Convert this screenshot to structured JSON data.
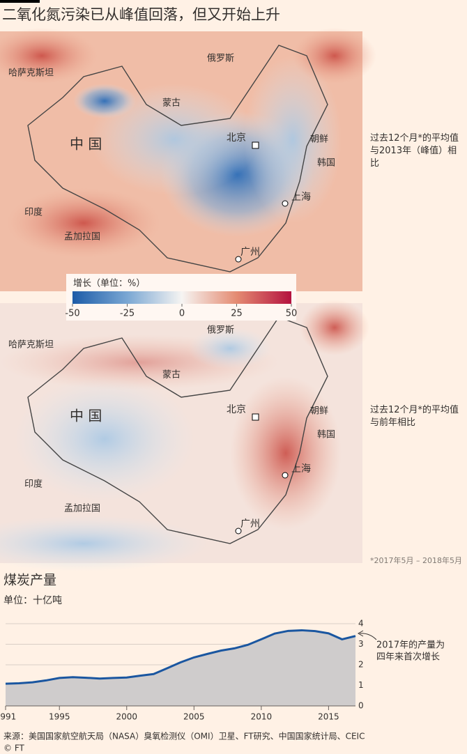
{
  "title": "二氧化氮污染已从峰值回落，但又开始上升",
  "maps": [
    {
      "note": "过去12个月*的平均值与2013年（峰值）相比",
      "labels": [
        "哈萨克斯坦",
        "俄罗斯",
        "蒙古",
        "中 国",
        "北京",
        "朝鲜",
        "韩国",
        "上海",
        "印度",
        "孟加拉国",
        "广州"
      ]
    },
    {
      "note": "过去12个月*的平均值与前年相比",
      "labels": [
        "哈萨克斯坦",
        "俄罗斯",
        "蒙古",
        "中 国",
        "北京",
        "朝鲜",
        "韩国",
        "上海",
        "印度",
        "孟加拉国",
        "广州"
      ]
    }
  ],
  "colorbar": {
    "title": "增长（单位：%）",
    "lim": [
      -50,
      50
    ],
    "ticks": [
      -50,
      -25,
      0,
      25,
      50
    ]
  },
  "footnote": "*2017年5月 – 2018年5月",
  "chart_data": {
    "type": "area",
    "title": "煤炭产量",
    "subtitle": "单位：十亿吨",
    "x": [
      1991,
      1992,
      1993,
      1994,
      1995,
      1996,
      1997,
      1998,
      1999,
      2000,
      2001,
      2002,
      2003,
      2004,
      2005,
      2006,
      2007,
      2008,
      2009,
      2010,
      2011,
      2012,
      2013,
      2014,
      2015,
      2016,
      2017
    ],
    "series": [
      {
        "color": "#1a56a0",
        "values": [
          1.08,
          1.1,
          1.15,
          1.24,
          1.36,
          1.4,
          1.37,
          1.33,
          1.36,
          1.38,
          1.47,
          1.55,
          1.83,
          2.12,
          2.36,
          2.53,
          2.69,
          2.8,
          2.97,
          3.24,
          3.52,
          3.65,
          3.68,
          3.64,
          3.53,
          3.24,
          3.4
        ]
      }
    ],
    "xlim": [
      1991,
      2017
    ],
    "xticks": [
      1991,
      1995,
      2000,
      2005,
      2010,
      2015
    ],
    "ylim": [
      0,
      4
    ],
    "yticks": [
      0,
      1,
      2,
      3,
      4
    ],
    "grid": true,
    "annotation": [
      "2017年的产量为",
      "四年来首次增长"
    ]
  },
  "source": "来源：美国国家航空航天局（NASA）臭氧检测仪（OMI）卫星、FT研究、中国国家统计局、CEIC",
  "credit": "© FT"
}
